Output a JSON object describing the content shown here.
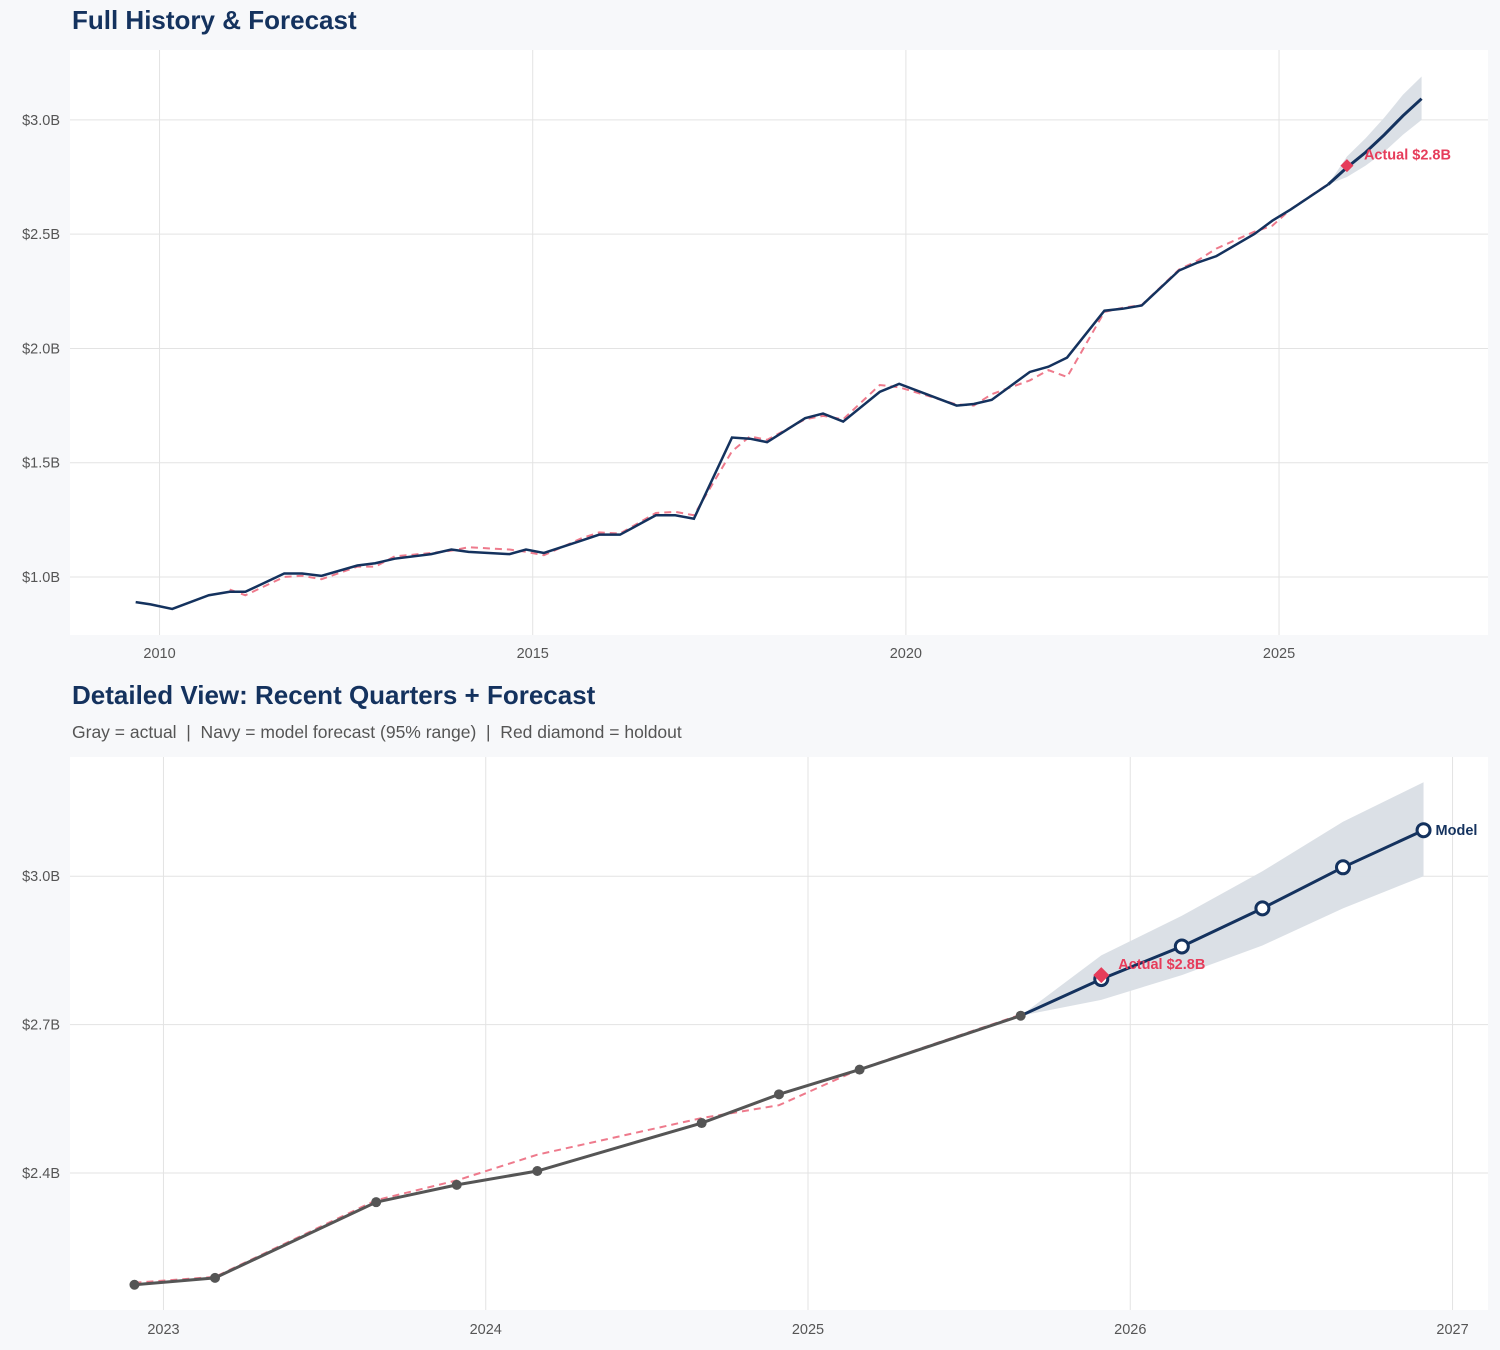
{
  "colors": {
    "actual_top": "#14325e",
    "actual_bottom": "#555555",
    "forecast": "#14325e",
    "fitted": "#ee7a8c",
    "holdout": "#e63c5a",
    "band": "#d9dee5",
    "grid": "#e3e3e3"
  },
  "chart_data": [
    {
      "type": "line",
      "title": "Full History & Forecast",
      "xlim": [
        2008.8,
        2027.8
      ],
      "ylim": [
        0.746,
        3.306
      ],
      "grid": true,
      "x_ticks": [
        2010,
        2015,
        2020,
        2025
      ],
      "x_tick_labels": [
        "2010",
        "2015",
        "2020",
        "2025"
      ],
      "y_ticks": [
        1.0,
        1.5,
        2.0,
        2.5,
        3.0
      ],
      "y_tick_labels": [
        "$1.0B",
        "$1.5B",
        "$2.0B",
        "$2.5B",
        "$3.0B"
      ],
      "actual": {
        "x": [
          2009.68,
          2009.88,
          2010.17,
          2010.66,
          2010.94,
          2011.15,
          2011.67,
          2011.91,
          2012.17,
          2012.65,
          2012.89,
          2013.15,
          2013.64,
          2013.91,
          2014.14,
          2014.69,
          2014.91,
          2015.15,
          2015.66,
          2015.89,
          2016.17,
          2016.65,
          2016.91,
          2017.16,
          2017.67,
          2017.91,
          2018.14,
          2018.65,
          2018.89,
          2019.16,
          2019.65,
          2019.91,
          2020.68,
          2020.91,
          2021.15,
          2021.66,
          2021.91,
          2022.16,
          2022.66,
          2022.91,
          2023.16,
          2023.66,
          2023.91,
          2024.16,
          2024.67,
          2024.91,
          2025.16,
          2025.66
        ],
        "y": [
          0.89,
          0.88,
          0.86,
          0.92,
          0.935,
          0.935,
          1.015,
          1.015,
          1.005,
          1.05,
          1.06,
          1.08,
          1.1,
          1.12,
          1.11,
          1.1,
          1.12,
          1.105,
          1.16,
          1.185,
          1.185,
          1.27,
          1.27,
          1.255,
          1.61,
          1.605,
          1.59,
          1.695,
          1.715,
          1.68,
          1.81,
          1.845,
          1.75,
          1.757,
          1.775,
          1.897,
          1.92,
          1.96,
          2.165,
          2.174,
          2.188,
          2.341,
          2.376,
          2.404,
          2.501,
          2.559,
          2.609,
          2.718
        ]
      },
      "fitted": {
        "x": [
          2010.94,
          2011.15,
          2011.67,
          2011.91,
          2012.17,
          2012.65,
          2012.89,
          2013.15,
          2013.64,
          2013.91,
          2014.14,
          2014.69,
          2014.91,
          2015.15,
          2015.66,
          2015.89,
          2016.17,
          2016.65,
          2016.91,
          2017.16,
          2017.67,
          2017.91,
          2018.14,
          2018.65,
          2018.89,
          2019.16,
          2019.65,
          2019.91,
          2020.68,
          2020.91,
          2021.15,
          2021.66,
          2021.91,
          2022.16,
          2022.66,
          2022.91,
          2023.16,
          2023.66,
          2023.91,
          2024.16,
          2024.67,
          2024.91,
          2025.16,
          2025.66
        ],
        "y": [
          0.945,
          0.92,
          1.0,
          1.005,
          0.99,
          1.045,
          1.045,
          1.09,
          1.105,
          1.115,
          1.13,
          1.12,
          1.11,
          1.095,
          1.17,
          1.195,
          1.19,
          1.28,
          1.285,
          1.27,
          1.55,
          1.615,
          1.6,
          1.69,
          1.705,
          1.69,
          1.84,
          1.83,
          1.755,
          1.75,
          1.8,
          1.86,
          1.905,
          1.875,
          2.16,
          2.178,
          2.19,
          2.345,
          2.385,
          2.437,
          2.511,
          2.537,
          2.61,
          2.72
        ]
      },
      "forecast": {
        "x": [
          2025.66,
          2025.91,
          2026.16,
          2026.41,
          2026.66,
          2026.91
        ],
        "y": [
          2.718,
          2.792,
          2.858,
          2.935,
          3.018,
          3.093
        ],
        "lower": [
          2.718,
          2.75,
          2.8,
          2.86,
          2.935,
          3.0
        ],
        "upper": [
          2.718,
          2.84,
          2.92,
          3.01,
          3.11,
          3.19
        ]
      },
      "holdout": {
        "x": 2025.91,
        "y": 2.8,
        "label": "Actual $2.8B"
      }
    },
    {
      "type": "line",
      "title": "Detailed View: Recent Quarters + Forecast",
      "subtitle": "Gray = actual  |  Navy = model forecast (95% range)  |  Red diamond = holdout",
      "xlim": [
        2022.71,
        2027.11
      ],
      "ylim": [
        2.123,
        3.241
      ],
      "grid": true,
      "x_ticks": [
        2023,
        2024,
        2025,
        2026,
        2027
      ],
      "x_tick_labels": [
        "2023",
        "2024",
        "2025",
        "2026",
        "2027"
      ],
      "y_ticks": [
        2.4,
        2.7,
        3.0
      ],
      "y_tick_labels": [
        "$2.4B",
        "$2.7B",
        "$3.0B"
      ],
      "actual": {
        "x": [
          2022.91,
          2023.16,
          2023.66,
          2023.91,
          2024.16,
          2024.67,
          2024.91,
          2025.16,
          2025.66
        ],
        "y": [
          2.174,
          2.188,
          2.341,
          2.376,
          2.404,
          2.501,
          2.559,
          2.609,
          2.718
        ]
      },
      "fitted": {
        "x": [
          2022.91,
          2023.16,
          2023.66,
          2023.91,
          2024.16,
          2024.67,
          2024.91,
          2025.16,
          2025.66
        ],
        "y": [
          2.178,
          2.19,
          2.345,
          2.385,
          2.437,
          2.511,
          2.537,
          2.61,
          2.72
        ]
      },
      "forecast": {
        "x": [
          2025.66,
          2025.91,
          2026.16,
          2026.41,
          2026.66,
          2026.91
        ],
        "y": [
          2.718,
          2.792,
          2.858,
          2.935,
          3.018,
          3.093
        ],
        "lower": [
          2.718,
          2.75,
          2.8,
          2.86,
          2.935,
          3.0
        ],
        "upper": [
          2.718,
          2.84,
          2.92,
          3.01,
          3.11,
          3.19
        ]
      },
      "holdout": {
        "x": 2025.91,
        "y": 2.8,
        "label": "Actual $2.8B"
      },
      "end_label": "Model"
    }
  ]
}
